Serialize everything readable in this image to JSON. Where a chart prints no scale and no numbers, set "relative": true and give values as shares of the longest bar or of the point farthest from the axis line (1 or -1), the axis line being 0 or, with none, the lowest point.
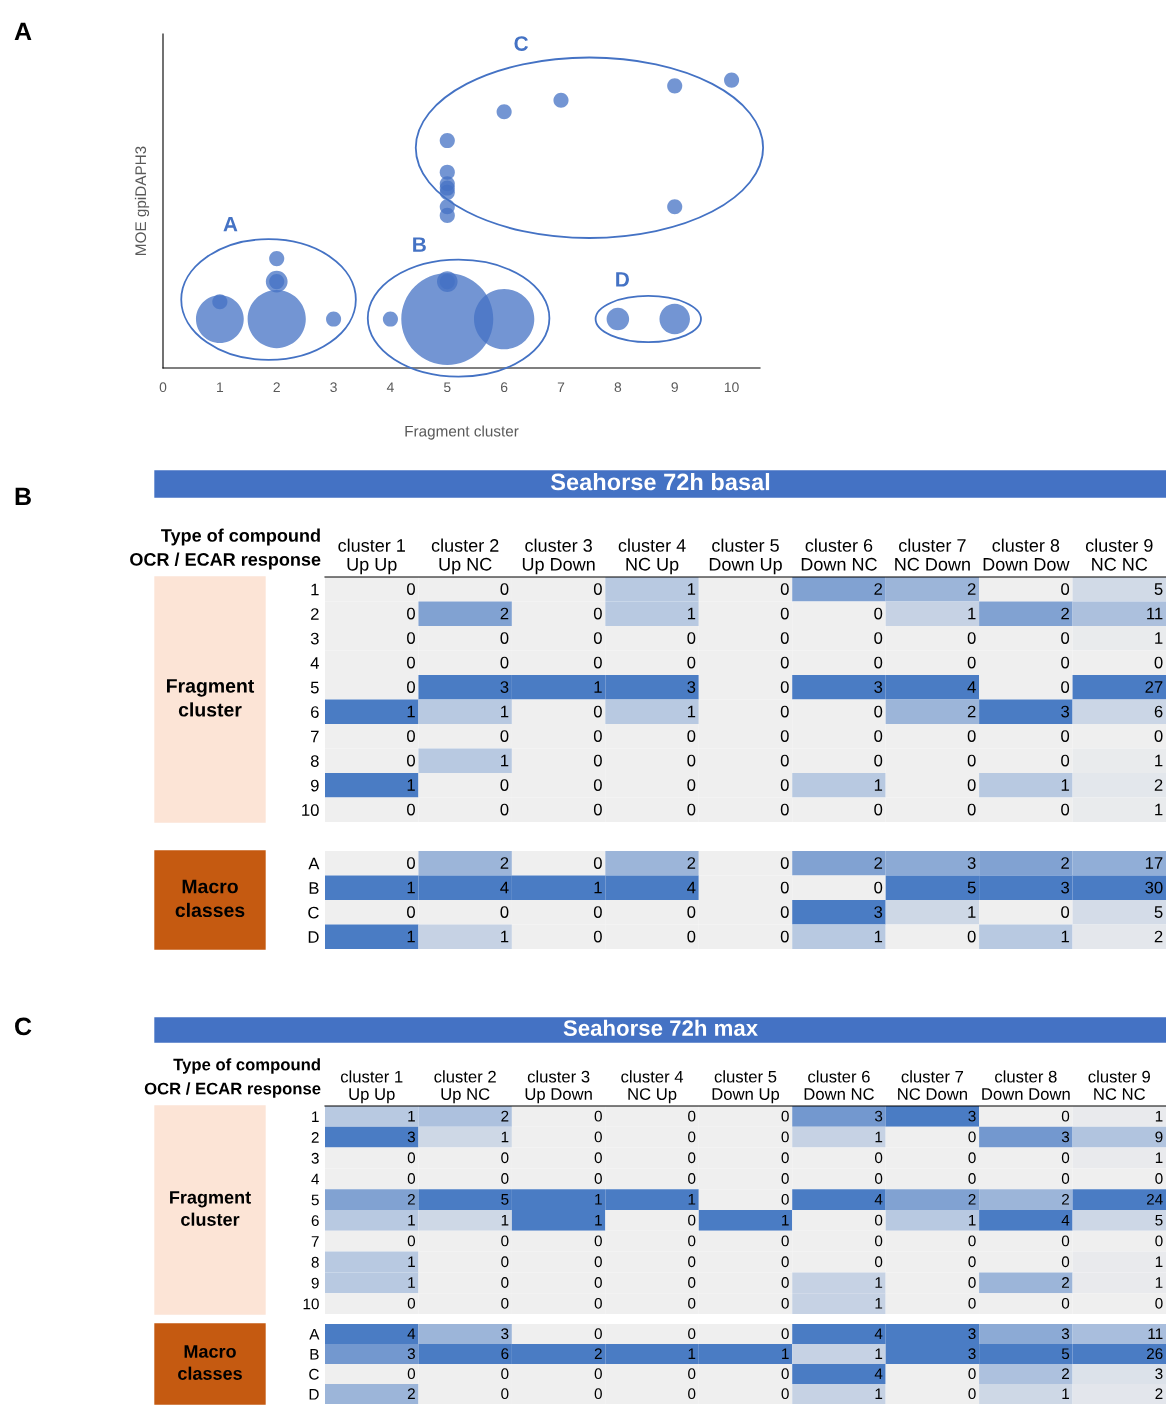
{
  "chart_data": [
    {
      "type": "bubble",
      "annotations": [
        "A"
      ],
      "xlabel": "Fragment cluster",
      "ylabel": "MOE gpiDAPH3",
      "relative": true,
      "xlim": [
        0,
        10.5
      ],
      "xticks": [
        0,
        1,
        2,
        3,
        4,
        5,
        6,
        7,
        8,
        9,
        10
      ],
      "grid": false,
      "legend": false,
      "series": [
        {
          "name": "A",
          "color": "#4472c4",
          "x": [
            1,
            1,
            2,
            2,
            2,
            2,
            3
          ],
          "values": [
            0.17,
            0.23,
            0.17,
            0.3,
            0.3,
            0.38,
            0.17
          ],
          "sizes": [
            0.27,
            0.027,
            0.4,
            0.056,
            0.027,
            0.027,
            0.027
          ]
        },
        {
          "name": "B",
          "color": "#4472c4",
          "x": [
            4,
            5,
            5,
            5,
            6
          ],
          "values": [
            0.17,
            0.17,
            0.3,
            0.3,
            0.17
          ],
          "sizes": [
            0.027,
            1,
            0.05,
            0.027,
            0.43
          ]
        },
        {
          "name": "C",
          "color": "#4472c4",
          "x": [
            5,
            5,
            5,
            5,
            5,
            5,
            5,
            6,
            7,
            9,
            9,
            10
          ],
          "values": [
            0.79,
            0.68,
            0.64,
            0.625,
            0.61,
            0.56,
            0.53,
            0.89,
            0.93,
            0.98,
            0.56,
            1.0
          ],
          "sizes": [
            0.027,
            0.027,
            0.027,
            0.027,
            0.027,
            0.027,
            0.027,
            0.027,
            0.027,
            0.027,
            0.027,
            0.027
          ]
        },
        {
          "name": "D",
          "color": "#4472c4",
          "x": [
            8,
            9
          ],
          "values": [
            0.17,
            0.17
          ],
          "sizes": [
            0.06,
            0.11
          ]
        }
      ]
    },
    {
      "type": "heatmap",
      "title": "Seahorse 72h basal",
      "annotations": [
        "B",
        "Type of compound",
        "OCR / ECAR response"
      ],
      "ylabel": "Fragment cluster",
      "data_labels": true,
      "color": "#4a7cc4",
      "categories": [
        "cluster 1\nUp Up",
        "cluster 2\nUp NC",
        "cluster 3\nUp Down",
        "cluster 4\nNC Up",
        "cluster 5\nDown Up",
        "cluster 6\nDown NC",
        "cluster 7\nNC Down",
        "cluster 8\nDown Dow",
        "cluster 9\nNC NC"
      ],
      "y_categories": [
        "1",
        "2",
        "3",
        "4",
        "5",
        "6",
        "7",
        "8",
        "9",
        "10"
      ],
      "cells": [
        [
          0,
          0,
          0,
          1,
          0,
          2,
          2,
          0,
          5
        ],
        [
          0,
          2,
          0,
          1,
          0,
          0,
          1,
          2,
          11
        ],
        [
          0,
          0,
          0,
          0,
          0,
          0,
          0,
          0,
          1
        ],
        [
          0,
          0,
          0,
          0,
          0,
          0,
          0,
          0,
          0
        ],
        [
          0,
          3,
          1,
          3,
          0,
          3,
          4,
          0,
          27
        ],
        [
          1,
          1,
          0,
          1,
          0,
          0,
          2,
          3,
          6
        ],
        [
          0,
          0,
          0,
          0,
          0,
          0,
          0,
          0,
          0
        ],
        [
          0,
          1,
          0,
          0,
          0,
          0,
          0,
          0,
          1
        ],
        [
          1,
          0,
          0,
          0,
          0,
          1,
          0,
          1,
          2
        ],
        [
          0,
          0,
          0,
          0,
          0,
          0,
          0,
          0,
          1
        ]
      ]
    },
    {
      "type": "heatmap",
      "ylabel": "Macro classes",
      "data_labels": true,
      "color": "#4a7cc4",
      "categories": [
        null,
        null,
        null,
        null,
        null,
        null,
        null,
        null,
        null
      ],
      "y_categories": [
        "A",
        "B",
        "C",
        "D"
      ],
      "cells": [
        [
          0,
          2,
          0,
          2,
          0,
          2,
          3,
          2,
          17
        ],
        [
          1,
          4,
          1,
          4,
          0,
          0,
          5,
          3,
          30
        ],
        [
          0,
          0,
          0,
          0,
          0,
          3,
          1,
          0,
          5
        ],
        [
          1,
          1,
          0,
          0,
          0,
          1,
          0,
          1,
          2
        ]
      ]
    },
    {
      "type": "heatmap",
      "title": "Seahorse 72h max",
      "annotations": [
        "C",
        "Type of compound",
        "OCR / ECAR response"
      ],
      "ylabel": "Fragment cluster",
      "data_labels": true,
      "color": "#4a7cc4",
      "categories": [
        "cluster 1\nUp Up",
        "cluster 2\nUp NC",
        "cluster 3\nUp Down",
        "cluster 4\nNC Up",
        "cluster 5\nDown Up",
        "cluster 6\nDown NC",
        "cluster 7\nNC Down",
        "cluster 8\nDown Down",
        "cluster 9\nNC NC"
      ],
      "y_categories": [
        "1",
        "2",
        "3",
        "4",
        "5",
        "6",
        "7",
        "8",
        "9",
        "10"
      ],
      "cells": [
        [
          1,
          2,
          0,
          0,
          0,
          3,
          3,
          0,
          1
        ],
        [
          3,
          1,
          0,
          0,
          0,
          1,
          0,
          3,
          9
        ],
        [
          0,
          0,
          0,
          0,
          0,
          0,
          0,
          0,
          1
        ],
        [
          0,
          0,
          0,
          0,
          0,
          0,
          0,
          0,
          0
        ],
        [
          2,
          5,
          1,
          1,
          0,
          4,
          2,
          2,
          24
        ],
        [
          1,
          1,
          1,
          0,
          1,
          0,
          1,
          4,
          5
        ],
        [
          0,
          0,
          0,
          0,
          0,
          0,
          0,
          0,
          0
        ],
        [
          1,
          0,
          0,
          0,
          0,
          0,
          0,
          0,
          1
        ],
        [
          1,
          0,
          0,
          0,
          0,
          1,
          0,
          2,
          1
        ],
        [
          0,
          0,
          0,
          0,
          0,
          1,
          0,
          0,
          0
        ]
      ]
    },
    {
      "type": "heatmap",
      "ylabel": "Macro classes",
      "data_labels": true,
      "color": "#4a7cc4",
      "categories": [
        null,
        null,
        null,
        null,
        null,
        null,
        null,
        null,
        null
      ],
      "y_categories": [
        "A",
        "B",
        "C",
        "D"
      ],
      "cells": [
        [
          4,
          3,
          0,
          0,
          0,
          4,
          3,
          3,
          11
        ],
        [
          3,
          6,
          2,
          1,
          1,
          1,
          3,
          5,
          26
        ],
        [
          0,
          0,
          0,
          0,
          0,
          4,
          0,
          2,
          3
        ],
        [
          2,
          0,
          0,
          0,
          0,
          1,
          0,
          1,
          2
        ]
      ]
    }
  ]
}
